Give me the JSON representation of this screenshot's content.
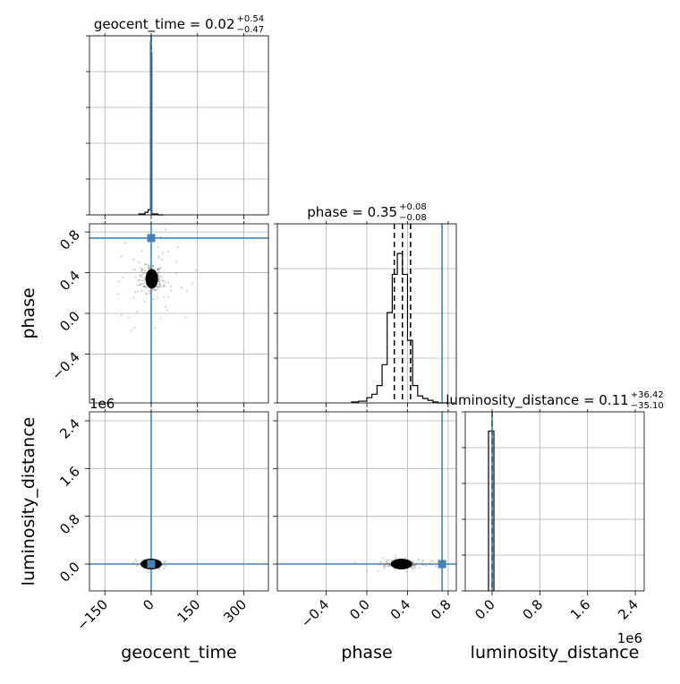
{
  "chart_data": {
    "type": "corner",
    "parameters": [
      "geocent_time",
      "phase",
      "luminosity_distance"
    ],
    "truths": {
      "geocent_time": 0,
      "phase": 0.74,
      "luminosity_distance": 0
    },
    "truth_color": "#4682b4",
    "grid": true,
    "diagonal": [
      {
        "param": "geocent_time",
        "title": "geocent_time = 0.02",
        "title_plus": "+0.54",
        "title_minus": "−0.47",
        "xlim": [
          -200,
          380
        ],
        "ylim": [
          0,
          1
        ],
        "quantile_lines": [
          -0.45,
          0.02,
          0.56
        ],
        "hist_edges": [
          -40,
          -20,
          -10,
          -2,
          0,
          2,
          22,
          40
        ],
        "hist_values": [
          0.005,
          0.015,
          0.03,
          1.0,
          0.935,
          0.005,
          0.0
        ],
        "tick_count_y": 5
      },
      {
        "param": "phase",
        "title": "phase = 0.35",
        "title_plus": "+0.08",
        "title_minus": "−0.08",
        "xlim": [
          -0.88,
          0.88
        ],
        "ylim": [
          0,
          1.0
        ],
        "quantile_lines": [
          0.27,
          0.35,
          0.43
        ],
        "hist_edges": [
          -0.15,
          -0.08,
          0.0,
          0.05,
          0.1,
          0.15,
          0.2,
          0.25,
          0.3,
          0.35,
          0.4,
          0.45,
          0.5,
          0.55,
          0.6,
          0.65,
          0.7,
          0.75,
          0.8
        ],
        "hist_values": [
          0.005,
          0.01,
          0.03,
          0.05,
          0.1,
          0.22,
          0.52,
          0.74,
          0.86,
          0.74,
          0.36,
          0.1,
          0.04,
          0.025,
          0.015,
          0.005,
          0.0,
          0.0
        ],
        "tick_count_y": 4
      },
      {
        "param": "luminosity_distance",
        "title": "luminosity_distance = 0.11",
        "title_plus": "+36.42",
        "title_minus": "−35.10",
        "xlim": [
          -450000,
          2550000
        ],
        "ylim": [
          0,
          1
        ],
        "quantile_lines": [
          -35,
          0.11,
          36
        ],
        "hist_edges": [
          -60000,
          0,
          30000
        ],
        "hist_values": [
          0.92,
          0.92
        ],
        "tick_count_y": 5
      }
    ],
    "axes": {
      "geocent_time": {
        "ticks": [
          -150,
          0,
          150,
          300
        ],
        "tick_labels": [
          "−150",
          "0",
          "150",
          "300"
        ],
        "lim": [
          -200,
          380
        ],
        "label": "geocent_time"
      },
      "phase": {
        "ticks": [
          -0.4,
          0.0,
          0.4,
          0.8
        ],
        "tick_labels": [
          "−0.4",
          "0.0",
          "0.4",
          "0.8"
        ],
        "lim": [
          -0.88,
          0.88
        ],
        "label": "phase"
      },
      "luminosity_distance": {
        "ticks": [
          0.0,
          0.8,
          1.6,
          2.4
        ],
        "tick_labels": [
          "0.0",
          "0.8",
          "1.6",
          "2.4"
        ],
        "scale": 1000000,
        "offset_label": "1e6",
        "lim": [
          -0.45,
          2.55
        ],
        "label": "luminosity_distance"
      }
    },
    "scatter_panels": [
      {
        "x": "geocent_time",
        "y": "phase",
        "center": [
          2,
          0.34
        ],
        "spread": [
          18,
          0.07
        ]
      },
      {
        "x": "geocent_time",
        "y": "luminosity_distance",
        "center": [
          0,
          0.0
        ],
        "spread": [
          10,
          0.02
        ]
      },
      {
        "x": "phase",
        "y": "luminosity_distance",
        "center": [
          0.34,
          0.0
        ],
        "spread": [
          0.07,
          0.02
        ]
      }
    ]
  }
}
